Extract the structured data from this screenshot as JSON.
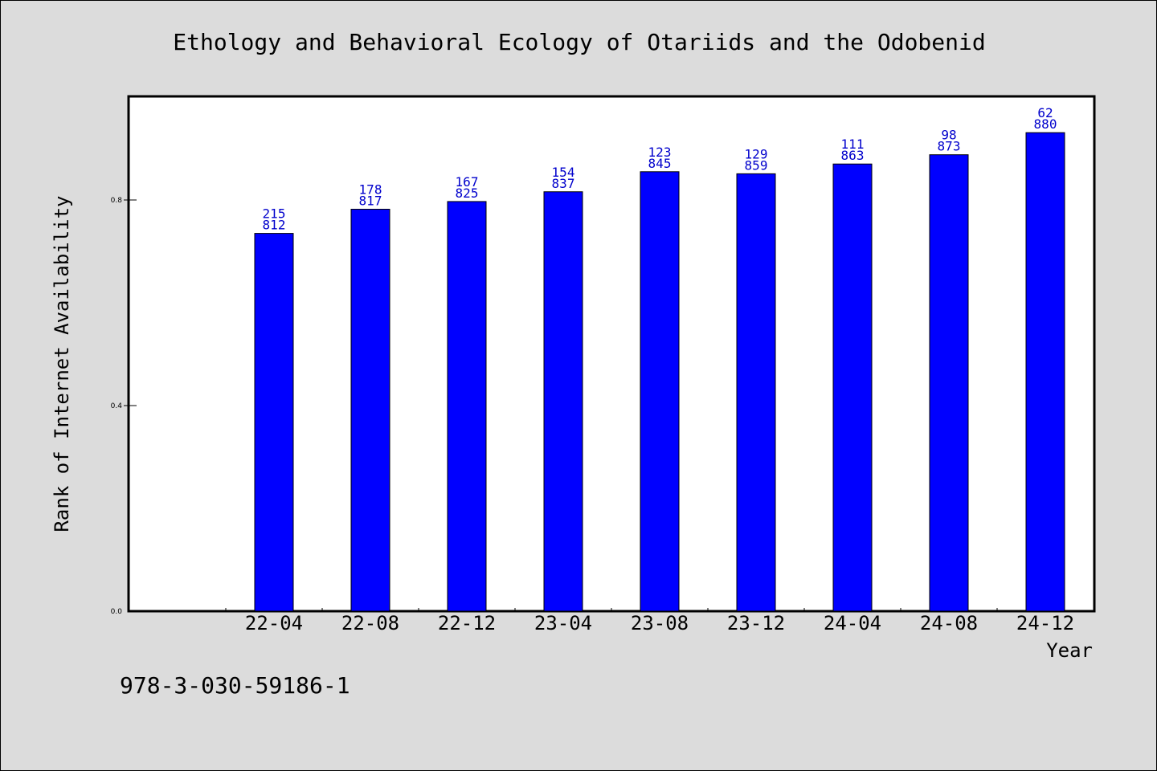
{
  "chart_data": {
    "type": "bar",
    "title": "Ethology and Behavioral Ecology of Otariids and the Odobenid",
    "xlabel": "Year",
    "ylabel": "Rank of Internet Availability",
    "categories": [
      "22-04",
      "22-08",
      "22-12",
      "23-04",
      "23-08",
      "23-12",
      "24-04",
      "24-08",
      "24-12"
    ],
    "values": [
      0.735,
      0.782,
      0.797,
      0.816,
      0.855,
      0.851,
      0.87,
      0.888,
      0.931
    ],
    "bar_labels_top": [
      "215",
      "178",
      "167",
      "154",
      "123",
      "129",
      "111",
      "98",
      "62"
    ],
    "bar_labels_bottom": [
      "812",
      "817",
      "825",
      "837",
      "845",
      "859",
      "863",
      "873",
      "880"
    ],
    "yticks": [
      "0.0",
      "0.4",
      "0.8"
    ],
    "ylim": [
      0,
      1.0
    ],
    "grid": false,
    "legend": "none",
    "colors": {
      "bar": "#0000ff",
      "bar_label": "#0000cc",
      "background": "#dcdcdc",
      "plot_area": "#ffffff"
    }
  },
  "footer": {
    "isbn": "978-3-030-59186-1"
  }
}
